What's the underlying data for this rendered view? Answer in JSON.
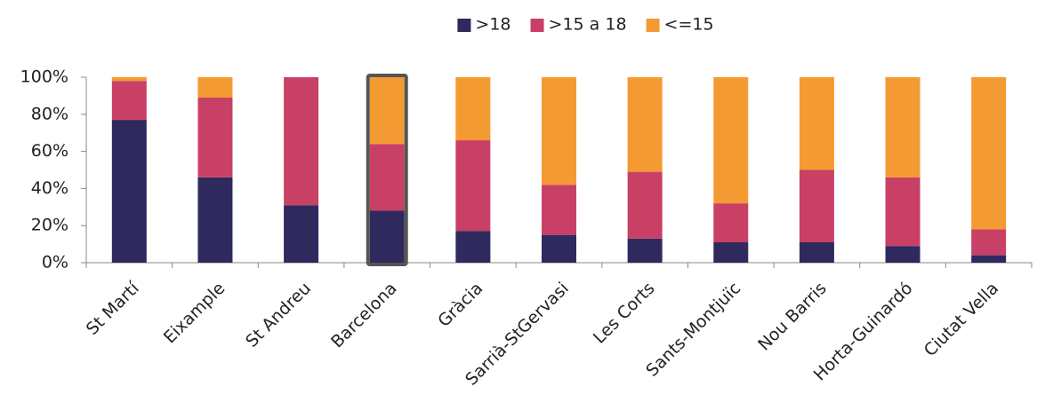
{
  "chart_data": {
    "type": "stacked_bar",
    "categories": [
      "St Martí",
      "Eixample",
      "St Andreu",
      "Barcelona",
      "Gràcia",
      "Sarrià-StGervasi",
      "Les Corts",
      "Sants-Montjuïc",
      "Nou Barris",
      "Horta-Guinardó",
      "Ciutat Vella"
    ],
    "series": [
      {
        "name": ">18",
        "color": "#2e2a5e",
        "values": [
          77,
          46,
          31,
          28,
          17,
          15,
          13,
          11,
          11,
          9,
          4
        ]
      },
      {
        "name": ">15 a 18",
        "color": "#c94066",
        "values": [
          21,
          43,
          69,
          36,
          49,
          27,
          36,
          21,
          39,
          37,
          14
        ]
      },
      {
        "name": "<=15",
        "color": "#f49a32",
        "values": [
          2,
          11,
          0,
          36,
          34,
          58,
          51,
          68,
          50,
          54,
          82
        ]
      }
    ],
    "ylim": [
      0,
      100
    ],
    "yticks": [
      {
        "value": 0,
        "label": "0%"
      },
      {
        "value": 20,
        "label": "20%"
      },
      {
        "value": 40,
        "label": "40%"
      },
      {
        "value": 60,
        "label": "60%"
      },
      {
        "value": 80,
        "label": "80%"
      },
      {
        "value": 100,
        "label": "100%"
      }
    ],
    "legend": "top",
    "highlight": "Barcelona"
  }
}
